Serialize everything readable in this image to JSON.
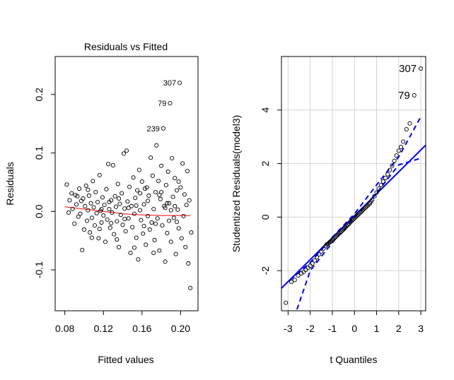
{
  "chart_data": [
    {
      "type": "scatter",
      "title": "Residuals vs Fitted",
      "xlabel": "Fitted values",
      "ylabel": "Residuals",
      "xlim": [
        0.07,
        0.218
      ],
      "ylim": [
        -0.17,
        0.265
      ],
      "x_ticks": [
        0.08,
        0.12,
        0.16,
        0.2
      ],
      "x_tick_labels": [
        "0.08",
        "0.12",
        "0.16",
        "0.20"
      ],
      "y_ticks": [
        -0.1,
        0.0,
        0.1,
        0.2
      ],
      "y_tick_labels": [
        "-0.1",
        "0.0",
        "0.1",
        "0.2"
      ],
      "labeled_points": [
        {
          "label": "307",
          "x": 0.199,
          "y": 0.22
        },
        {
          "label": "79",
          "x": 0.189,
          "y": 0.185
        },
        {
          "label": "239",
          "x": 0.182,
          "y": 0.142
        }
      ],
      "smooth_line": {
        "color": "#ff0000",
        "x": [
          0.08,
          0.1,
          0.12,
          0.14,
          0.16,
          0.18,
          0.2,
          0.21
        ],
        "y": [
          0.008,
          0.004,
          0.0,
          -0.004,
          -0.006,
          -0.007,
          -0.007,
          -0.007
        ]
      },
      "points": [
        [
          0.082,
          0.046
        ],
        [
          0.085,
          0.019
        ],
        [
          0.087,
          0.031
        ],
        [
          0.088,
          0.004
        ],
        [
          0.09,
          -0.021
        ],
        [
          0.091,
          0.028
        ],
        [
          0.092,
          0.012
        ],
        [
          0.094,
          -0.009
        ],
        [
          0.095,
          0.039
        ],
        [
          0.096,
          -0.004
        ],
        [
          0.097,
          0.018
        ],
        [
          0.098,
          -0.066
        ],
        [
          0.099,
          0.022
        ],
        [
          0.1,
          -0.031
        ],
        [
          0.101,
          0.009
        ],
        [
          0.102,
          0.044
        ],
        [
          0.103,
          -0.016
        ],
        [
          0.104,
          0.002
        ],
        [
          0.105,
          0.027
        ],
        [
          0.106,
          -0.036
        ],
        [
          0.107,
          0.014
        ],
        [
          0.108,
          -0.011
        ],
        [
          0.109,
          0.052
        ],
        [
          0.11,
          0.007
        ],
        [
          0.111,
          -0.024
        ],
        [
          0.112,
          0.033
        ],
        [
          0.113,
          -0.003
        ],
        [
          0.114,
          0.016
        ],
        [
          0.115,
          -0.046
        ],
        [
          0.116,
          0.062
        ],
        [
          0.117,
          0.001
        ],
        [
          0.118,
          -0.019
        ],
        [
          0.119,
          0.024
        ],
        [
          0.12,
          -0.007
        ],
        [
          0.121,
          0.011
        ],
        [
          0.122,
          -0.052
        ],
        [
          0.123,
          0.038
        ],
        [
          0.124,
          -0.014
        ],
        [
          0.125,
          0.081
        ],
        [
          0.126,
          0.004
        ],
        [
          0.127,
          -0.028
        ],
        [
          0.128,
          0.019
        ],
        [
          0.129,
          -0.002
        ],
        [
          0.13,
          0.079
        ],
        [
          0.131,
          -0.039
        ],
        [
          0.132,
          0.026
        ],
        [
          0.133,
          0.008
        ],
        [
          0.134,
          -0.017
        ],
        [
          0.135,
          0.047
        ],
        [
          0.136,
          -0.061
        ],
        [
          0.137,
          0.013
        ],
        [
          0.138,
          -0.006
        ],
        [
          0.139,
          0.031
        ],
        [
          0.14,
          -0.023
        ],
        [
          0.141,
          0.099
        ],
        [
          0.142,
          0.005
        ],
        [
          0.143,
          -0.034
        ],
        [
          0.144,
          0.104
        ],
        [
          0.145,
          0.017
        ],
        [
          0.146,
          -0.012
        ],
        [
          0.147,
          0.042
        ],
        [
          0.148,
          -0.071
        ],
        [
          0.149,
          0.009
        ],
        [
          0.15,
          -0.027
        ],
        [
          0.151,
          0.058
        ],
        [
          0.152,
          -0.004
        ],
        [
          0.153,
          0.023
        ],
        [
          0.154,
          -0.045
        ],
        [
          0.155,
          0.036
        ],
        [
          0.156,
          -0.082
        ],
        [
          0.157,
          0.071
        ],
        [
          0.158,
          0.002
        ],
        [
          0.159,
          -0.015
        ],
        [
          0.16,
          0.051
        ],
        [
          0.161,
          -0.038
        ],
        [
          0.162,
          0.012
        ],
        [
          0.163,
          0.039
        ],
        [
          0.164,
          -0.057
        ],
        [
          0.165,
          0.041
        ],
        [
          0.166,
          -0.008
        ],
        [
          0.167,
          0.027
        ],
        [
          0.168,
          -0.031
        ],
        [
          0.169,
          0.092
        ],
        [
          0.17,
          -0.019
        ],
        [
          0.171,
          0.061
        ],
        [
          0.172,
          0.004
        ],
        [
          0.173,
          -0.049
        ],
        [
          0.174,
          0.033
        ],
        [
          0.175,
          0.113
        ],
        [
          0.176,
          -0.012
        ],
        [
          0.177,
          0.052
        ],
        [
          0.178,
          -0.067
        ],
        [
          0.179,
          0.021
        ],
        [
          0.18,
          0.078
        ],
        [
          0.181,
          -0.024
        ],
        [
          0.182,
          0.142
        ],
        [
          0.183,
          0.009
        ],
        [
          0.184,
          -0.086
        ],
        [
          0.185,
          0.045
        ],
        [
          0.186,
          -0.037
        ],
        [
          0.187,
          0.068
        ],
        [
          0.188,
          0.014
        ],
        [
          0.189,
          0.185
        ],
        [
          0.19,
          -0.052
        ],
        [
          0.191,
          0.091
        ],
        [
          0.192,
          0.025
        ],
        [
          0.193,
          -0.011
        ],
        [
          0.194,
          0.057
        ],
        [
          0.195,
          -0.073
        ],
        [
          0.196,
          0.036
        ],
        [
          0.197,
          0.003
        ],
        [
          0.198,
          -0.029
        ],
        [
          0.199,
          0.22
        ],
        [
          0.2,
          0.041
        ],
        [
          0.201,
          -0.046
        ],
        [
          0.202,
          0.082
        ],
        [
          0.203,
          -0.008
        ],
        [
          0.204,
          0.029
        ],
        [
          0.205,
          -0.061
        ],
        [
          0.206,
          0.011
        ],
        [
          0.207,
          0.069
        ],
        [
          0.208,
          -0.089
        ],
        [
          0.209,
          0.019
        ],
        [
          0.21,
          -0.131
        ],
        [
          0.211,
          -0.036
        ],
        [
          0.084,
          -0.002
        ],
        [
          0.093,
          0.026
        ],
        [
          0.108,
          -0.045
        ],
        [
          0.118,
          0.004
        ],
        [
          0.126,
          0.016
        ],
        [
          0.134,
          -0.048
        ],
        [
          0.146,
          0.006
        ],
        [
          0.152,
          -0.062
        ],
        [
          0.158,
          0.031
        ],
        [
          0.166,
          0.018
        ],
        [
          0.172,
          -0.071
        ],
        [
          0.178,
          0.028
        ],
        [
          0.184,
          0.006
        ],
        [
          0.188,
          -0.016
        ],
        [
          0.194,
          0.009
        ],
        [
          0.198,
          0.051
        ],
        [
          0.174,
          -0.021
        ],
        [
          0.18,
          0.033
        ],
        [
          0.186,
          0.014
        ],
        [
          0.19,
          0.002
        ],
        [
          0.196,
          -0.018
        ],
        [
          0.162,
          -0.025
        ],
        [
          0.154,
          0.01
        ],
        [
          0.142,
          -0.013
        ],
        [
          0.136,
          0.022
        ],
        [
          0.128,
          -0.02
        ],
        [
          0.116,
          -0.03
        ],
        [
          0.104,
          0.037
        ]
      ]
    },
    {
      "type": "scatter",
      "title": "",
      "xlabel": "t Quantiles",
      "ylabel": "Studentized Residuals(model3)",
      "xlim": [
        -3.3,
        3.22
      ],
      "ylim": [
        -3.5,
        6.0
      ],
      "x_ticks": [
        -3,
        -2,
        -1,
        0,
        1,
        2,
        3
      ],
      "x_tick_labels": [
        "-3",
        "-2",
        "-1",
        "0",
        "1",
        "2",
        "3"
      ],
      "y_ticks": [
        -2,
        0,
        2,
        4
      ],
      "y_tick_labels": [
        "-2",
        "0",
        "2",
        "4"
      ],
      "grid": true,
      "labeled_points": [
        {
          "label": "307",
          "x": 3.0,
          "y": 5.55
        },
        {
          "label": "79",
          "x": 2.7,
          "y": 4.55
        }
      ],
      "reference_line": {
        "color": "#0000ff",
        "slope": 0.82,
        "intercept": 0.05
      },
      "envelope": {
        "color": "#0000ff",
        "upper": {
          "x": [
            -2.9,
            -2,
            -1,
            0,
            1,
            2,
            3
          ],
          "y": [
            -2.35,
            -1.7,
            -0.75,
            0.12,
            1.2,
            2.25,
            3.75
          ]
        },
        "lower": {
          "x": [
            -2.6,
            -2,
            -1,
            0,
            1,
            2,
            3
          ],
          "y": [
            -3.45,
            -2.0,
            -0.95,
            -0.02,
            0.9,
            1.95,
            2.2
          ]
        }
      },
      "points": [
        [
          -3.1,
          -3.2
        ],
        [
          -2.85,
          -2.42
        ],
        [
          -2.7,
          -2.35
        ],
        [
          -2.55,
          -2.18
        ],
        [
          -2.4,
          -2.1
        ],
        [
          -2.3,
          -2.05
        ],
        [
          -2.2,
          -1.97
        ],
        [
          -2.1,
          -1.89
        ],
        [
          -2.0,
          -1.82
        ],
        [
          -1.9,
          -1.73
        ],
        [
          -1.8,
          -1.62
        ],
        [
          -1.7,
          -1.5
        ],
        [
          -1.6,
          -1.39
        ],
        [
          -1.5,
          -1.28
        ],
        [
          -1.4,
          -1.17
        ],
        [
          -1.3,
          -1.08
        ],
        [
          -1.2,
          -1.0
        ],
        [
          -1.1,
          -0.93
        ],
        [
          -1.0,
          -0.86
        ],
        [
          -0.9,
          -0.78
        ],
        [
          -0.8,
          -0.7
        ],
        [
          -0.7,
          -0.62
        ],
        [
          -0.6,
          -0.54
        ],
        [
          -0.5,
          -0.46
        ],
        [
          -0.4,
          -0.37
        ],
        [
          -0.3,
          -0.29
        ],
        [
          -0.2,
          -0.2
        ],
        [
          -0.1,
          -0.12
        ],
        [
          0.0,
          -0.04
        ],
        [
          0.1,
          0.04
        ],
        [
          0.2,
          0.12
        ],
        [
          0.3,
          0.2
        ],
        [
          0.4,
          0.28
        ],
        [
          0.5,
          0.36
        ],
        [
          0.6,
          0.44
        ],
        [
          0.7,
          0.52
        ],
        [
          0.8,
          0.64
        ],
        [
          0.9,
          0.78
        ],
        [
          1.0,
          0.92
        ],
        [
          1.1,
          1.06
        ],
        [
          1.2,
          1.2
        ],
        [
          1.3,
          1.33
        ],
        [
          1.4,
          1.46
        ],
        [
          1.5,
          1.6
        ],
        [
          1.6,
          1.76
        ],
        [
          1.7,
          1.92
        ],
        [
          1.8,
          2.1
        ],
        [
          1.9,
          2.3
        ],
        [
          2.0,
          2.48
        ],
        [
          2.1,
          2.62
        ],
        [
          2.2,
          2.82
        ],
        [
          2.35,
          3.28
        ],
        [
          2.5,
          3.5
        ],
        [
          2.7,
          4.55
        ],
        [
          3.0,
          5.55
        ],
        [
          -1.25,
          -1.02
        ],
        [
          -1.15,
          -0.96
        ],
        [
          -1.05,
          -0.9
        ],
        [
          -0.95,
          -0.82
        ],
        [
          -0.85,
          -0.74
        ],
        [
          -0.75,
          -0.66
        ],
        [
          -0.65,
          -0.58
        ],
        [
          -0.55,
          -0.5
        ],
        [
          -0.45,
          -0.42
        ],
        [
          -0.35,
          -0.33
        ],
        [
          -0.25,
          -0.25
        ],
        [
          -0.15,
          -0.16
        ],
        [
          -0.05,
          -0.08
        ],
        [
          0.05,
          0.0
        ],
        [
          0.15,
          0.08
        ],
        [
          0.25,
          0.16
        ],
        [
          0.35,
          0.24
        ],
        [
          0.45,
          0.32
        ],
        [
          0.55,
          0.4
        ],
        [
          0.65,
          0.48
        ],
        [
          0.75,
          0.58
        ]
      ]
    }
  ]
}
